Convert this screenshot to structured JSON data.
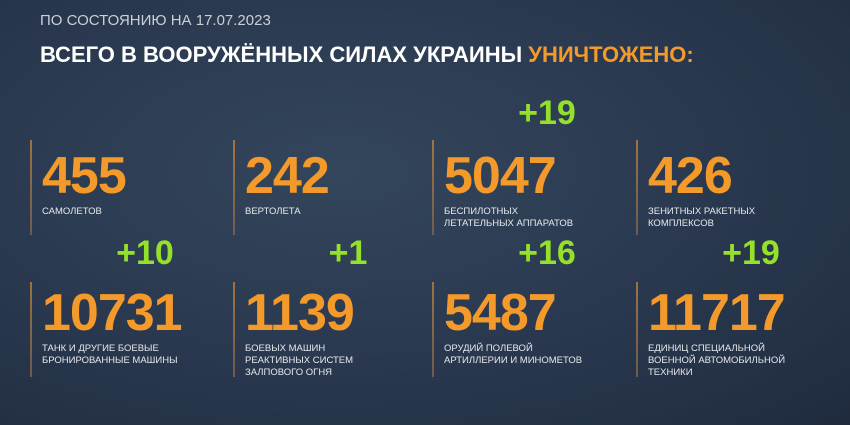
{
  "header": {
    "date": "ПО СОСТОЯНИЮ НА 17.07.2023",
    "title": "ВСЕГО В ВООРУЖЁННЫХ СИЛАХ УКРАИНЫ",
    "title_highlight": "УНИЧТОЖЕНО:"
  },
  "items": [
    {
      "number": "455",
      "label": [
        "САМОЛЕТОВ"
      ]
    },
    {
      "number": "242",
      "label": [
        "ВЕРТОЛЕТА"
      ]
    },
    {
      "number": "5047",
      "delta": "+19",
      "label": [
        "БЕСПИЛОТНЫХ",
        "ЛЕТАТЕЛЬНЫХ АППАРАТОВ"
      ]
    },
    {
      "number": "426",
      "label": [
        "ЗЕНИТНЫХ РАКЕТНЫХ",
        "КОМПЛЕКСОВ"
      ]
    },
    {
      "number": "10731",
      "delta": "+10",
      "label": [
        "ТАНК И ДРУГИЕ БОЕВЫЕ",
        "БРОНИРОВАННЫЕ МАШИНЫ"
      ]
    },
    {
      "number": "1139",
      "delta": "+1",
      "label": [
        "БОЕВЫХ МАШИН",
        "РЕАКТИВНЫХ СИСТЕМ",
        "ЗАЛПОВОГО ОГНЯ"
      ]
    },
    {
      "number": "5487",
      "delta": "+16",
      "label": [
        "ОРУДИЙ ПОЛЕВОЙ",
        "АРТИЛЛЕРИИ И МИНОМЕТОВ"
      ]
    },
    {
      "number": "11717",
      "delta": "+19",
      "label": [
        "ЕДИНИЦ СПЕЦИАЛЬНОЙ",
        "ВОЕННОЙ АВТОМОБИЛЬНОЙ",
        "ТЕХНИКИ"
      ]
    }
  ]
}
